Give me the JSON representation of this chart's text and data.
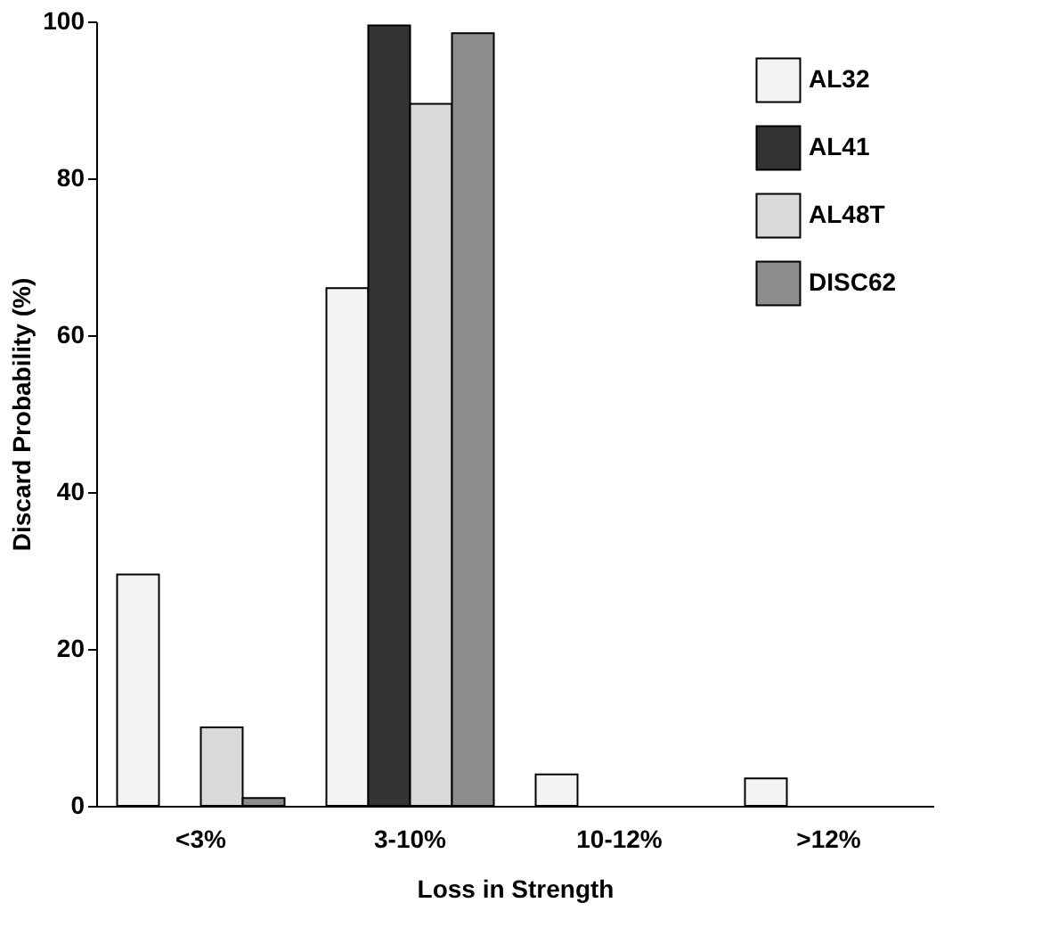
{
  "chart_data": {
    "type": "bar",
    "xlabel": "Loss in Strength",
    "ylabel": "Discard Probability (%)",
    "categories": [
      "<3%",
      "3-10%",
      "10-12%",
      ">12%"
    ],
    "series": [
      {
        "name": "AL32",
        "color": "#f4f4f4",
        "values": [
          29.5,
          66,
          4,
          3.5
        ]
      },
      {
        "name": "AL41",
        "color": "#333333",
        "values": [
          0,
          99.5,
          0,
          0
        ]
      },
      {
        "name": "AL48T",
        "color": "#d9d9d9",
        "values": [
          10,
          89.5,
          0,
          0
        ]
      },
      {
        "name": "DISC62",
        "color": "#8c8c8c",
        "values": [
          1,
          98.5,
          0,
          0
        ]
      }
    ],
    "ylim": [
      0,
      100
    ],
    "yticks": [
      0,
      20,
      40,
      60,
      80,
      100
    ],
    "grid": false,
    "legend": "top right"
  }
}
